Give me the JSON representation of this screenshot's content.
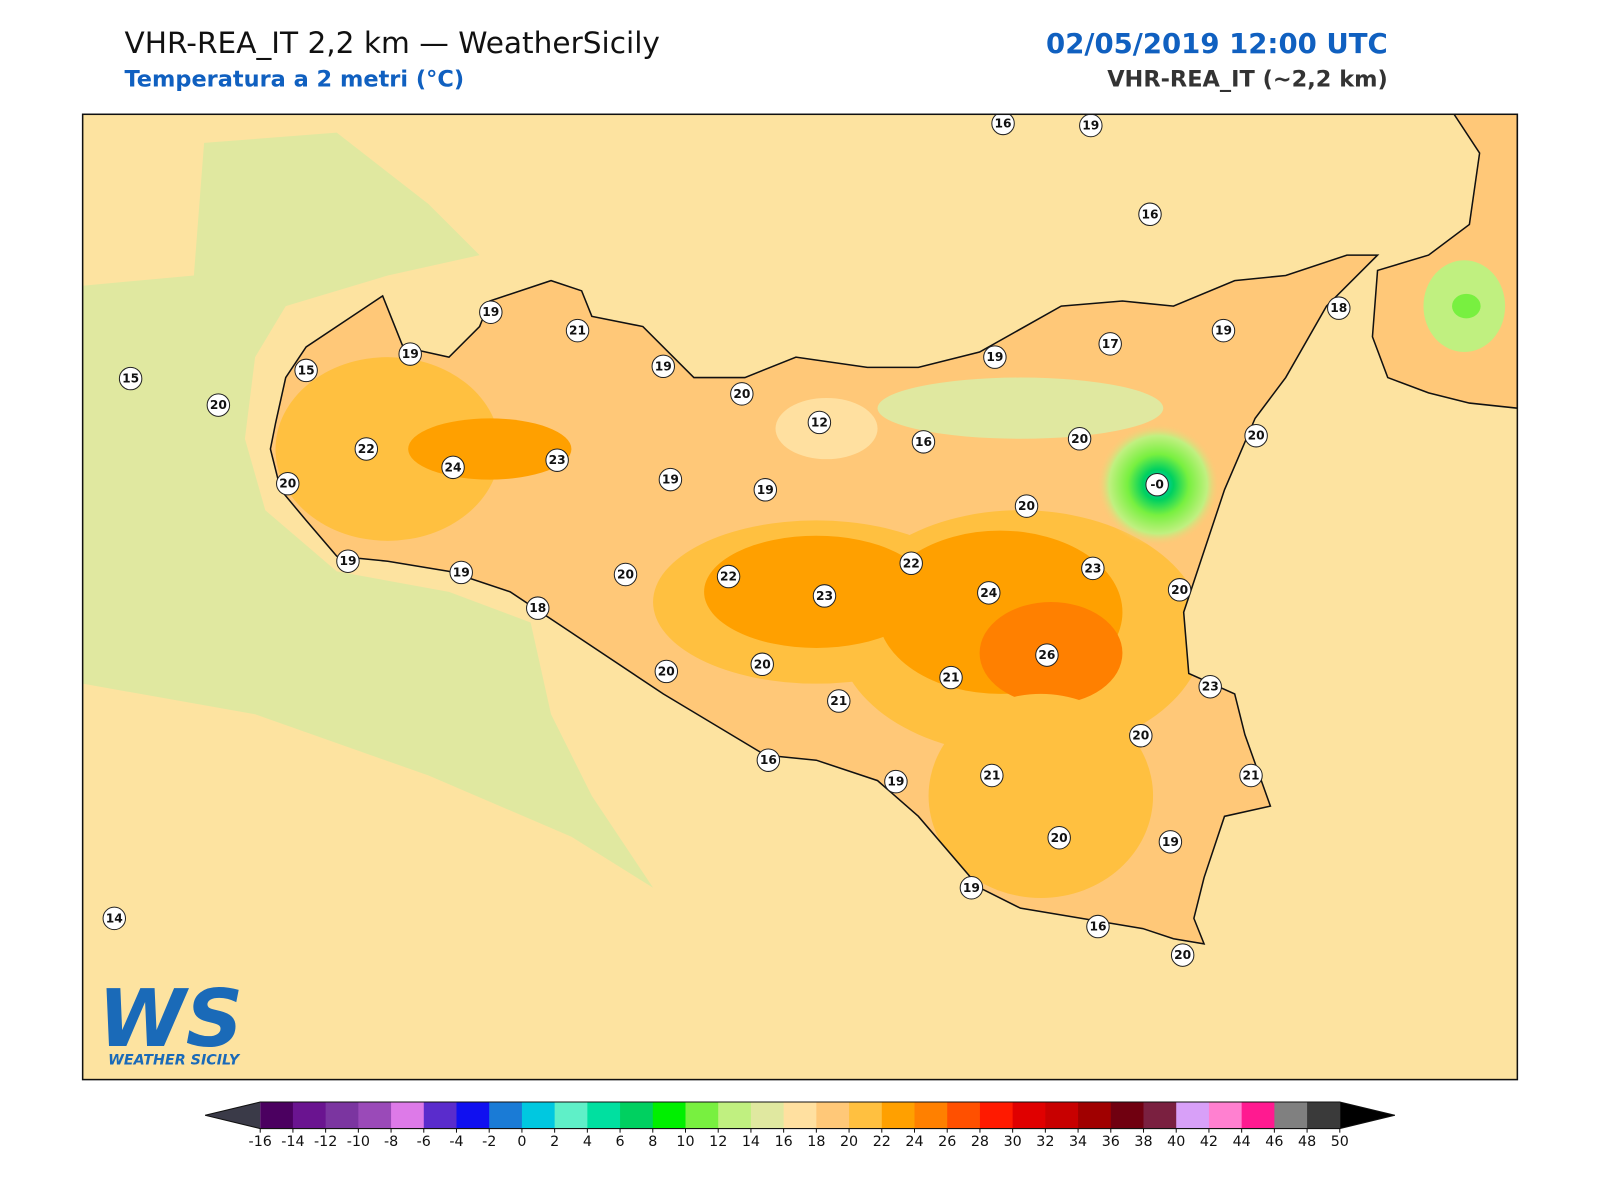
{
  "header": {
    "title": "VHR-REA_IT 2,2 km — WeatherSicily",
    "subtitle": "Temperatura a 2 metri (°C)",
    "datetime": "02/05/2019 12:00 UTC",
    "model": "VHR-REA_IT (~2,2 km)"
  },
  "logo": {
    "mark": "WS",
    "name": "WEATHER SICILY"
  },
  "stations": [
    16,
    19,
    16,
    18,
    19,
    17,
    19,
    19,
    21,
    19,
    20,
    12,
    16,
    20,
    20,
    "-0",
    15,
    15,
    19,
    20,
    22,
    24,
    23,
    19,
    19,
    20,
    20,
    19,
    19,
    20,
    22,
    22,
    23,
    23,
    24,
    20,
    18,
    26,
    20,
    20,
    21,
    23,
    21,
    20,
    16,
    19,
    21,
    21,
    20,
    19,
    19,
    16,
    20,
    14
  ],
  "colorbar": {
    "ticks": [
      -16,
      -14,
      -12,
      -10,
      -8,
      -6,
      -4,
      -2,
      0,
      2,
      4,
      6,
      8,
      10,
      12,
      14,
      16,
      18,
      20,
      22,
      24,
      26,
      28,
      30,
      32,
      34,
      36,
      38,
      40,
      42,
      44,
      46,
      48,
      50
    ],
    "colors": [
      "#4b0060",
      "#6a1490",
      "#7b35a0",
      "#9a4ab8",
      "#dd7ae8",
      "#5a2ccc",
      "#1010f0",
      "#1a7bd6",
      "#00c8e0",
      "#5ff0c8",
      "#00e0a0",
      "#00d060",
      "#00f000",
      "#78f040",
      "#c0f080",
      "#e0e8a0",
      "#ffe0a0",
      "#ffc878",
      "#ffc040",
      "#ffa000",
      "#ff8000",
      "#ff5000",
      "#ff1a00",
      "#e00000",
      "#c80000",
      "#a00000",
      "#700010",
      "#7a2040",
      "#d8a0f8",
      "#ff80d0",
      "#ff1a90",
      "#808080",
      "#3a3a3a"
    ],
    "under_color": "#3a3a48",
    "over_color": "#000000"
  }
}
